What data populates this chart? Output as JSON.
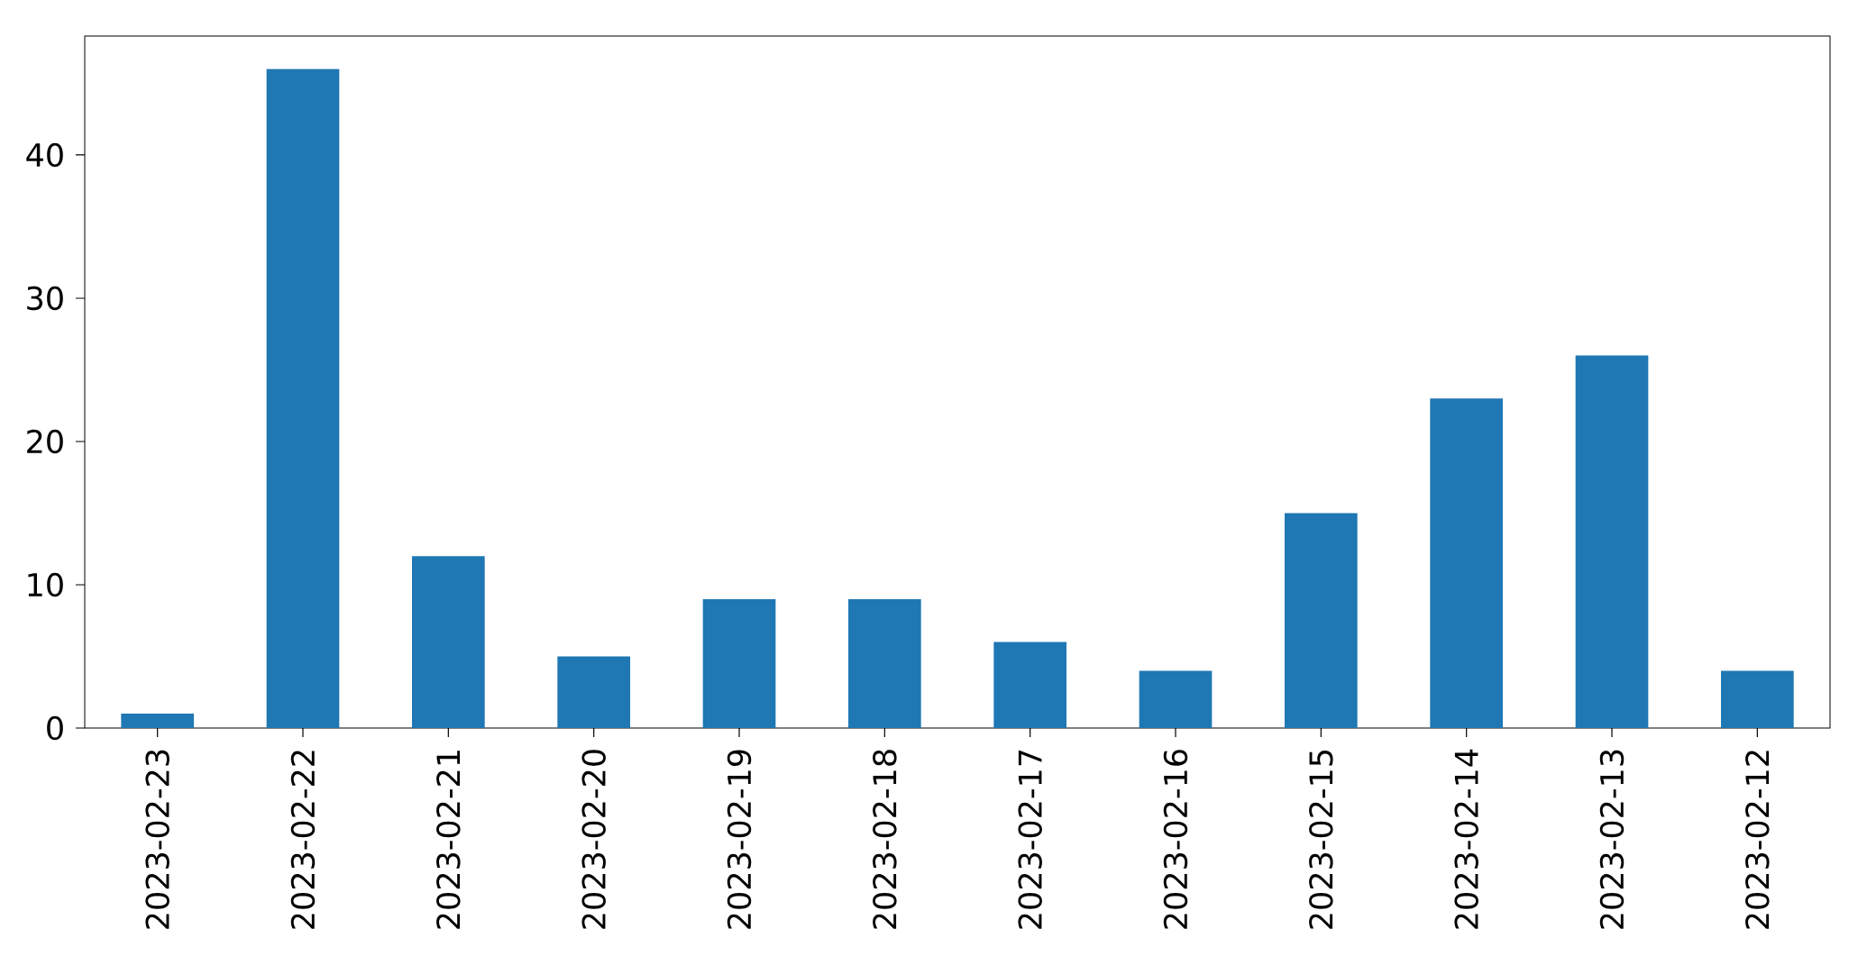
{
  "chart_data": {
    "type": "bar",
    "categories": [
      "2023-02-23",
      "2023-02-22",
      "2023-02-21",
      "2023-02-20",
      "2023-02-19",
      "2023-02-18",
      "2023-02-17",
      "2023-02-16",
      "2023-02-15",
      "2023-02-14",
      "2023-02-13",
      "2023-02-12"
    ],
    "values": [
      1,
      46,
      12,
      5,
      9,
      9,
      6,
      4,
      15,
      23,
      26,
      4
    ],
    "color": "#1f77b4",
    "ylim": [
      0,
      48.3
    ],
    "yticks": [
      0,
      10,
      20,
      30,
      40
    ],
    "grid": false
  }
}
